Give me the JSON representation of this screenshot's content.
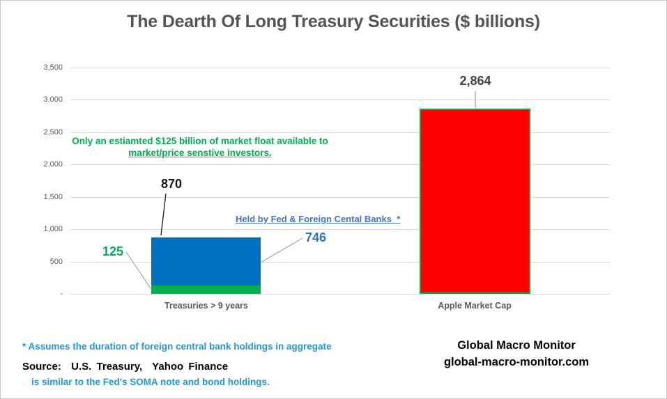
{
  "title": "The Dearth Of Long Treasury Securities ($ billions)",
  "chart_data": {
    "type": "bar",
    "stacked": true,
    "categories": [
      "Treasuries > 9 years",
      "Apple Market Cap"
    ],
    "series": [
      {
        "name": "Market float available to investors",
        "color": "#00B050",
        "values": [
          125,
          0
        ]
      },
      {
        "name": "Held by Fed & Foreign Central Banks",
        "color": "#0070C0",
        "values": [
          746,
          0
        ]
      },
      {
        "name": "Apple Market Cap",
        "color": "#FF0000",
        "values": [
          0,
          2864
        ]
      }
    ],
    "bar_totals": [
      870,
      2864
    ],
    "title": "The Dearth Of Long Treasury Securities ($ billions)",
    "xlabel": "",
    "ylabel": "",
    "ylim": [
      0,
      3500
    ],
    "ytick_step": 500,
    "ytick_labels": [
      "-",
      "500",
      "1,000",
      "1,500",
      "2,000",
      "2,500",
      "3,000",
      "3,500"
    ],
    "grid": true,
    "legend": "none"
  },
  "value_labels": {
    "bar1_total": "870",
    "green_segment": "125",
    "blue_segment": "746",
    "red_bar": "2,864"
  },
  "annotations": {
    "green_line1": "Only an estiamted $125  billion of market float available to",
    "green_line2": "market/price senstive investors.",
    "held_by": "Held by Fed & Foreign Cental Banks  *",
    "footnote_line1": "* Assumes the duration of foreign central bank holdings in aggregate",
    "footnote_line2": "is similar to the Fed's SOMA note and bond holdings."
  },
  "source": "Source:  U.S. Treasury,  Yahoo Finance",
  "branding": {
    "line1": "Global Macro Monitor",
    "line2": "global-macro-monitor.com"
  },
  "colors": {
    "green": "#00B050",
    "blue": "#0070C0",
    "red": "#FF0000",
    "label_blue": "#2E75B6",
    "heldby_blue": "#4472C4",
    "footnote_blue": "#2097D6",
    "axis_gray": "#595959",
    "gridline": "#d9d9d9"
  }
}
